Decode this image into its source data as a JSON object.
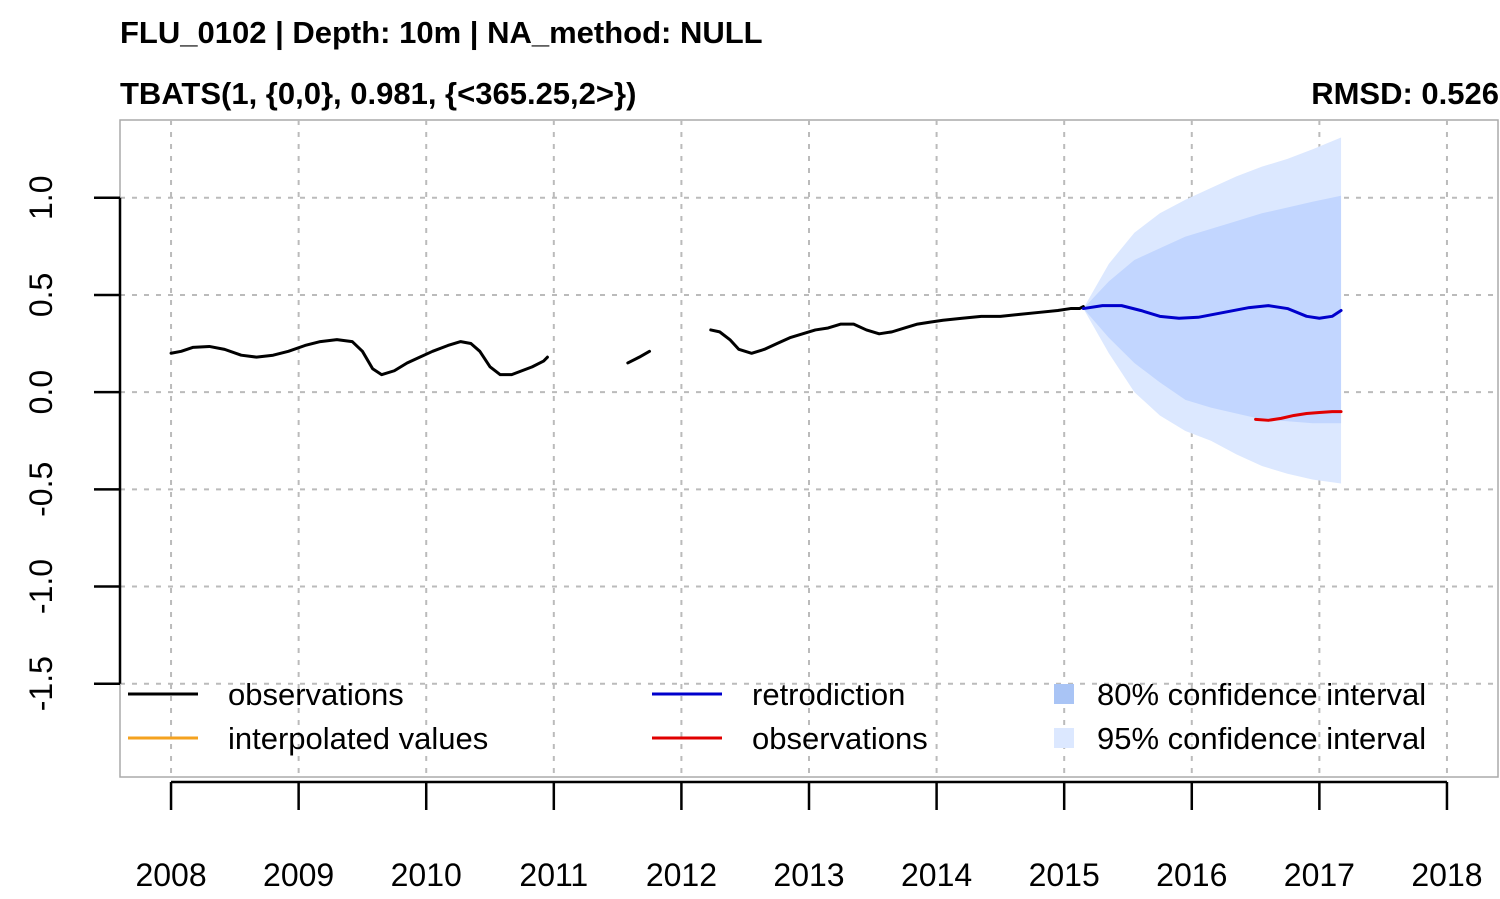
{
  "chart_data": {
    "type": "line",
    "title": "FLU_0102 | Depth: 10m | NA_method: NULL",
    "subtitle": "TBATS(1, {0,0}, 0.981, {<365.25,2>})",
    "annotation": "RMSD: 0.526",
    "xlabel": "",
    "ylabel": "",
    "x_ticks": [
      "2008",
      "2009",
      "2010",
      "2011",
      "2012",
      "2013",
      "2014",
      "2015",
      "2016",
      "2017",
      "2018"
    ],
    "y_ticks": [
      "-1.5",
      "-1.0",
      "-0.5",
      "0.0",
      "0.5",
      "1.0"
    ],
    "xlim": [
      2007.6,
      2018.4
    ],
    "ylim": [
      -1.98,
      1.4
    ],
    "grid": true,
    "legend_position": "bottom-inside",
    "series": [
      {
        "name": "observations",
        "color": "#000000",
        "segments": [
          [
            [
              2008.0,
              0.2
            ],
            [
              2008.08,
              0.21
            ],
            [
              2008.17,
              0.23
            ],
            [
              2008.3,
              0.235
            ],
            [
              2008.42,
              0.22
            ],
            [
              2008.55,
              0.19
            ],
            [
              2008.67,
              0.18
            ],
            [
              2008.8,
              0.19
            ],
            [
              2008.92,
              0.21
            ],
            [
              2009.05,
              0.24
            ],
            [
              2009.17,
              0.26
            ],
            [
              2009.3,
              0.27
            ],
            [
              2009.42,
              0.26
            ],
            [
              2009.5,
              0.21
            ],
            [
              2009.58,
              0.12
            ],
            [
              2009.65,
              0.09
            ],
            [
              2009.75,
              0.11
            ],
            [
              2009.85,
              0.15
            ],
            [
              2009.95,
              0.18
            ],
            [
              2010.05,
              0.21
            ],
            [
              2010.17,
              0.24
            ],
            [
              2010.27,
              0.26
            ],
            [
              2010.35,
              0.25
            ],
            [
              2010.42,
              0.21
            ],
            [
              2010.5,
              0.13
            ],
            [
              2010.58,
              0.09
            ],
            [
              2010.67,
              0.09
            ],
            [
              2010.75,
              0.11
            ],
            [
              2010.83,
              0.13
            ],
            [
              2010.92,
              0.16
            ],
            [
              2010.95,
              0.18
            ]
          ],
          [
            [
              2011.58,
              0.15
            ],
            [
              2011.67,
              0.18
            ],
            [
              2011.75,
              0.21
            ]
          ],
          [
            [
              2012.23,
              0.32
            ],
            [
              2012.3,
              0.31
            ],
            [
              2012.38,
              0.27
            ],
            [
              2012.45,
              0.22
            ],
            [
              2012.55,
              0.2
            ],
            [
              2012.65,
              0.22
            ],
            [
              2012.75,
              0.25
            ],
            [
              2012.85,
              0.28
            ],
            [
              2012.95,
              0.3
            ],
            [
              2013.05,
              0.32
            ],
            [
              2013.15,
              0.33
            ],
            [
              2013.25,
              0.35
            ],
            [
              2013.35,
              0.35
            ],
            [
              2013.45,
              0.32
            ],
            [
              2013.55,
              0.3
            ],
            [
              2013.65,
              0.31
            ],
            [
              2013.75,
              0.33
            ],
            [
              2013.85,
              0.35
            ],
            [
              2013.95,
              0.36
            ],
            [
              2014.05,
              0.37
            ],
            [
              2014.2,
              0.38
            ],
            [
              2014.35,
              0.39
            ],
            [
              2014.5,
              0.39
            ],
            [
              2014.65,
              0.4
            ],
            [
              2014.8,
              0.41
            ],
            [
              2014.95,
              0.42
            ],
            [
              2015.05,
              0.43
            ],
            [
              2015.12,
              0.43
            ],
            [
              2015.15,
              0.44
            ]
          ]
        ]
      },
      {
        "name": "interpolated values",
        "color": "#F4A21F",
        "segments": []
      },
      {
        "name": "retrodiction",
        "color": "#0000CC",
        "segments": [
          [
            [
              2015.15,
              0.43
            ],
            [
              2015.3,
              0.445
            ],
            [
              2015.45,
              0.445
            ],
            [
              2015.6,
              0.42
            ],
            [
              2015.75,
              0.39
            ],
            [
              2015.9,
              0.38
            ],
            [
              2016.05,
              0.385
            ],
            [
              2016.25,
              0.41
            ],
            [
              2016.45,
              0.435
            ],
            [
              2016.6,
              0.445
            ],
            [
              2016.75,
              0.43
            ],
            [
              2016.9,
              0.39
            ],
            [
              2017.0,
              0.38
            ],
            [
              2017.1,
              0.39
            ],
            [
              2017.17,
              0.42
            ]
          ]
        ]
      },
      {
        "name": "observations",
        "color": "#E00000",
        "segments": [
          [
            [
              2016.5,
              -0.14
            ],
            [
              2016.6,
              -0.145
            ],
            [
              2016.7,
              -0.135
            ],
            [
              2016.8,
              -0.12
            ],
            [
              2016.9,
              -0.11
            ],
            [
              2017.0,
              -0.105
            ],
            [
              2017.1,
              -0.1
            ],
            [
              2017.17,
              -0.1
            ]
          ]
        ]
      }
    ],
    "intervals": [
      {
        "name": "95% confidence interval",
        "color": "#DCE8FF",
        "x": [
          2015.15,
          2015.35,
          2015.55,
          2015.75,
          2015.95,
          2016.15,
          2016.35,
          2016.55,
          2016.75,
          2016.95,
          2017.17
        ],
        "lower": [
          0.43,
          0.2,
          0.0,
          -0.12,
          -0.2,
          -0.25,
          -0.32,
          -0.38,
          -0.42,
          -0.45,
          -0.47
        ],
        "upper": [
          0.43,
          0.66,
          0.82,
          0.92,
          0.99,
          1.05,
          1.11,
          1.16,
          1.2,
          1.25,
          1.31
        ]
      },
      {
        "name": "80% confidence interval",
        "color": "#C2D6FF",
        "x": [
          2015.15,
          2015.35,
          2015.55,
          2015.75,
          2015.95,
          2016.15,
          2016.35,
          2016.55,
          2016.75,
          2016.95,
          2017.17
        ],
        "lower": [
          0.43,
          0.28,
          0.15,
          0.05,
          -0.04,
          -0.08,
          -0.11,
          -0.14,
          -0.15,
          -0.16,
          -0.16
        ],
        "upper": [
          0.43,
          0.57,
          0.68,
          0.74,
          0.8,
          0.84,
          0.88,
          0.92,
          0.95,
          0.98,
          1.01
        ]
      }
    ],
    "legend_columns": [
      [
        {
          "kind": "line",
          "label": "observations",
          "color": "#000000"
        },
        {
          "kind": "line",
          "label": "interpolated values",
          "color": "#F4A21F"
        }
      ],
      [
        {
          "kind": "line",
          "label": "retrodiction",
          "color": "#0000CC"
        },
        {
          "kind": "line",
          "label": "observations",
          "color": "#E00000"
        }
      ],
      [
        {
          "kind": "box",
          "label": "80% confidence interval",
          "color": "#A9C4F5"
        },
        {
          "kind": "box",
          "label": "95% confidence interval",
          "color": "#DCE8FF"
        }
      ]
    ]
  }
}
